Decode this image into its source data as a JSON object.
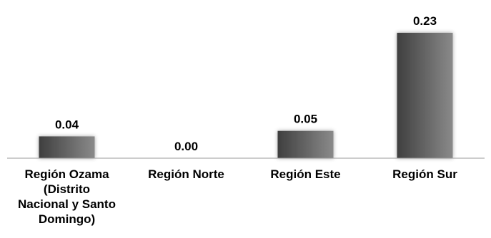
{
  "chart_data": {
    "type": "bar",
    "categories": [
      "Región Ozama (Distrito Nacional y Santo Domingo)",
      "Región Norte",
      "Región Este",
      "Región Sur"
    ],
    "category_label_lines": [
      [
        "Región Ozama",
        "(Distrito",
        "Nacional y Santo",
        "Domingo)"
      ],
      [
        "Región Norte"
      ],
      [
        "Región Este"
      ],
      [
        "Región Sur"
      ]
    ],
    "values": [
      0.04,
      0.0,
      0.05,
      0.23
    ],
    "value_labels": [
      "0.04",
      "0.00",
      "0.05",
      "0.23"
    ],
    "title": "",
    "xlabel": "",
    "ylabel": "",
    "ylim": [
      0,
      0.23
    ],
    "grid": false,
    "legend": "none",
    "colors": {
      "bar_dark": "#3f3f3f",
      "bar_light": "#8a8a8a",
      "axis": "#9a9a9a",
      "text": "#000000"
    }
  }
}
